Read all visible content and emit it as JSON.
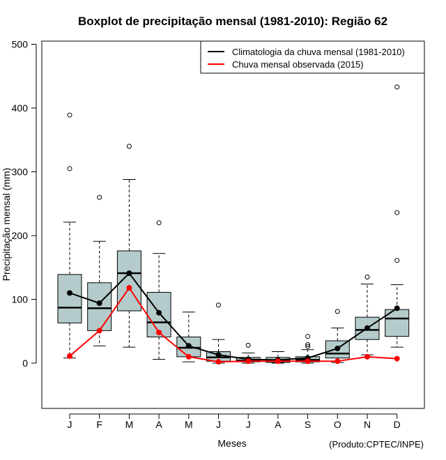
{
  "chart_data": {
    "type": "boxplot",
    "title": "Boxplot de precipitação mensal (1981-2010): Região 62",
    "xlabel": "Meses",
    "ylabel": "Precipitação mensal (mm)",
    "credit": "(Produto:CPTEC/INPE)",
    "ylim": [
      -70,
      505
    ],
    "yticks": [
      0,
      100,
      200,
      300,
      400,
      500
    ],
    "categories": [
      "J",
      "F",
      "M",
      "A",
      "M",
      "J",
      "J",
      "A",
      "S",
      "O",
      "N",
      "D"
    ],
    "boxes": [
      {
        "whisker_low": 8,
        "q1": 63,
        "median": 87,
        "q3": 139,
        "whisker_high": 221,
        "outliers": [
          305,
          389
        ]
      },
      {
        "whisker_low": 27,
        "q1": 51,
        "median": 86,
        "q3": 126,
        "whisker_high": 191,
        "outliers": [
          260
        ]
      },
      {
        "whisker_low": 25,
        "q1": 82,
        "median": 141,
        "q3": 176,
        "whisker_high": 288,
        "outliers": [
          340
        ]
      },
      {
        "whisker_low": 6,
        "q1": 41,
        "median": 64,
        "q3": 111,
        "whisker_high": 172,
        "outliers": [
          220
        ]
      },
      {
        "whisker_low": 2,
        "q1": 10,
        "median": 24,
        "q3": 41,
        "whisker_high": 80,
        "outliers": []
      },
      {
        "whisker_low": 0,
        "q1": 3,
        "median": 9,
        "q3": 18,
        "whisker_high": 37,
        "outliers": [
          91
        ]
      },
      {
        "whisker_low": 0,
        "q1": 2,
        "median": 4,
        "q3": 9,
        "whisker_high": 16,
        "outliers": [
          28
        ]
      },
      {
        "whisker_low": 0,
        "q1": 1,
        "median": 4,
        "q3": 9,
        "whisker_high": 18,
        "outliers": []
      },
      {
        "whisker_low": 0,
        "q1": 2,
        "median": 5,
        "q3": 10,
        "whisker_high": 21,
        "outliers": [
          26,
          29,
          42
        ]
      },
      {
        "whisker_low": 1,
        "q1": 8,
        "median": 15,
        "q3": 35,
        "whisker_high": 55,
        "outliers": [
          81
        ]
      },
      {
        "whisker_low": 13,
        "q1": 37,
        "median": 52,
        "q3": 72,
        "whisker_high": 124,
        "outliers": [
          135
        ]
      },
      {
        "whisker_low": 25,
        "q1": 42,
        "median": 70,
        "q3": 84,
        "whisker_high": 123,
        "outliers": [
          161,
          236,
          433
        ]
      }
    ],
    "series": [
      {
        "name": "Climatologia da chuva mensal (1981-2010)",
        "color": "#000000",
        "values": [
          110,
          94,
          141,
          79,
          27,
          13,
          6,
          5,
          8,
          23,
          55,
          86
        ]
      },
      {
        "name": "Chuva mensal observada (2015)",
        "color": "#ff0000",
        "values": [
          11,
          51,
          118,
          48,
          10,
          2,
          3,
          3,
          3,
          3,
          10,
          7
        ]
      }
    ],
    "box_fill": "#b5cbcb",
    "legend_position": "top-right"
  }
}
